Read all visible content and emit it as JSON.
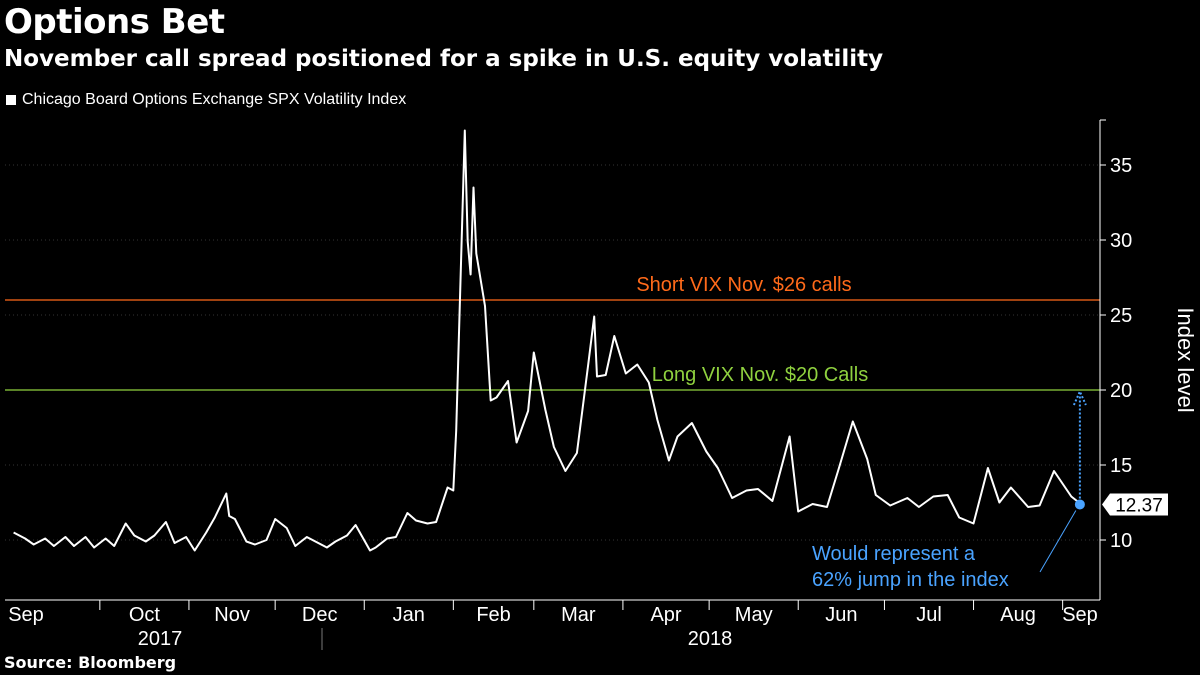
{
  "title": "Options Bet",
  "subtitle": "November call spread positioned for a spike in U.S. equity volatility",
  "source": "Source: Bloomberg",
  "colors": {
    "background": "#000000",
    "series": "#ffffff",
    "short_line": "#ff6a1a",
    "long_line": "#8fd13f",
    "annotation": "#4aa3ff",
    "grid": "#333333"
  },
  "chart_data": {
    "type": "line",
    "title": "Options Bet",
    "subtitle": "November call spread positioned for a spike in U.S. equity volatility",
    "ylabel": "Index level",
    "xlabel": "",
    "ylim": [
      6,
      38
    ],
    "y_ticks": [
      10,
      15,
      20,
      25,
      30,
      35
    ],
    "grid": "horizontal dotted",
    "legend": "top-left",
    "months": [
      "Sep",
      "Oct",
      "Nov",
      "Dec",
      "Jan",
      "Feb",
      "Mar",
      "Apr",
      "May",
      "Jun",
      "Jul",
      "Aug",
      "Sep"
    ],
    "years": [
      "2017",
      "2018"
    ],
    "series": [
      {
        "name": "Chicago Board Options Exchange SPX Volatility Index",
        "x": [
          "2017-09-01",
          "2017-09-05",
          "2017-09-08",
          "2017-09-12",
          "2017-09-15",
          "2017-09-19",
          "2017-09-22",
          "2017-09-26",
          "2017-09-29",
          "2017-10-03",
          "2017-10-06",
          "2017-10-10",
          "2017-10-13",
          "2017-10-17",
          "2017-10-20",
          "2017-10-24",
          "2017-10-27",
          "2017-10-31",
          "2017-11-03",
          "2017-11-07",
          "2017-11-10",
          "2017-11-14",
          "2017-11-15",
          "2017-11-17",
          "2017-11-21",
          "2017-11-24",
          "2017-11-28",
          "2017-12-01",
          "2017-12-05",
          "2017-12-08",
          "2017-12-12",
          "2017-12-15",
          "2017-12-19",
          "2017-12-22",
          "2017-12-26",
          "2017-12-29",
          "2018-01-03",
          "2018-01-05",
          "2018-01-09",
          "2018-01-12",
          "2018-01-16",
          "2018-01-19",
          "2018-01-23",
          "2018-01-26",
          "2018-01-30",
          "2018-02-01",
          "2018-02-02",
          "2018-02-05",
          "2018-02-06",
          "2018-02-07",
          "2018-02-08",
          "2018-02-09",
          "2018-02-12",
          "2018-02-14",
          "2018-02-16",
          "2018-02-20",
          "2018-02-23",
          "2018-02-27",
          "2018-03-01",
          "2018-03-05",
          "2018-03-08",
          "2018-03-12",
          "2018-03-16",
          "2018-03-20",
          "2018-03-22",
          "2018-03-23",
          "2018-03-26",
          "2018-03-29",
          "2018-04-02",
          "2018-04-06",
          "2018-04-10",
          "2018-04-13",
          "2018-04-17",
          "2018-04-20",
          "2018-04-25",
          "2018-04-30",
          "2018-05-04",
          "2018-05-09",
          "2018-05-14",
          "2018-05-18",
          "2018-05-23",
          "2018-05-29",
          "2018-06-01",
          "2018-06-06",
          "2018-06-11",
          "2018-06-15",
          "2018-06-20",
          "2018-06-25",
          "2018-06-28",
          "2018-07-03",
          "2018-07-09",
          "2018-07-13",
          "2018-07-18",
          "2018-07-23",
          "2018-07-27",
          "2018-08-01",
          "2018-08-06",
          "2018-08-10",
          "2018-08-14",
          "2018-08-20",
          "2018-08-24",
          "2018-08-29",
          "2018-09-04",
          "2018-09-06",
          "2018-09-07"
        ],
        "y": [
          10.5,
          10.1,
          9.7,
          10.1,
          9.6,
          10.2,
          9.6,
          10.2,
          9.5,
          10.1,
          9.6,
          11.1,
          10.3,
          9.9,
          10.3,
          11.2,
          9.8,
          10.2,
          9.3,
          10.5,
          11.5,
          13.1,
          11.6,
          11.4,
          9.9,
          9.7,
          10.0,
          11.4,
          10.8,
          9.6,
          10.2,
          9.9,
          9.5,
          9.9,
          10.3,
          11.0,
          9.3,
          9.5,
          10.1,
          10.2,
          11.8,
          11.3,
          11.1,
          11.2,
          13.5,
          13.3,
          17.3,
          37.3,
          29.9,
          27.7,
          33.5,
          29.1,
          25.6,
          19.3,
          19.5,
          20.6,
          16.5,
          18.6,
          22.5,
          18.7,
          16.2,
          14.6,
          15.8,
          21.8,
          24.9,
          20.9,
          21.0,
          23.6,
          21.1,
          21.7,
          20.5,
          18.0,
          15.3,
          16.9,
          17.8,
          15.9,
          14.8,
          12.8,
          13.3,
          13.4,
          12.6,
          16.9,
          11.9,
          12.4,
          12.2,
          14.7,
          17.9,
          15.4,
          13.0,
          12.3,
          12.8,
          12.2,
          12.9,
          13.0,
          11.5,
          11.1,
          14.8,
          12.5,
          13.5,
          12.2,
          12.3,
          14.6,
          12.9,
          12.6,
          12.37
        ]
      }
    ],
    "reference_lines": [
      {
        "value": 26,
        "label": "Short VIX Nov. $26 calls"
      },
      {
        "value": 20,
        "label": "Long VIX Nov. $20 Calls"
      }
    ],
    "last_value_label": "12.37",
    "annotation": "Would represent a 62% jump in the index",
    "annotation_lines": [
      "Would represent a",
      "62% jump in the index"
    ]
  }
}
